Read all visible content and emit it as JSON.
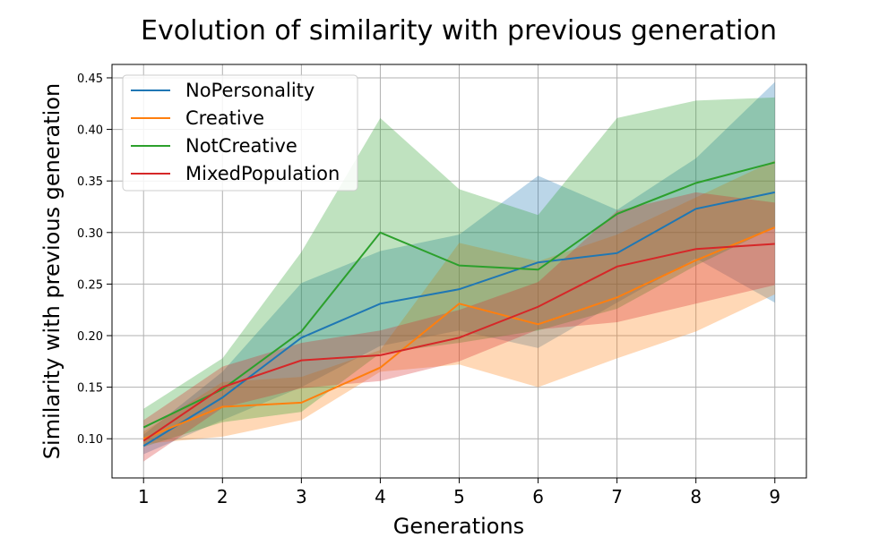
{
  "chart_data": {
    "type": "line",
    "title": "Evolution of similarity with previous generation",
    "xlabel": "Generations",
    "ylabel": "Similarity with previous generation",
    "x": [
      1,
      2,
      3,
      4,
      5,
      6,
      7,
      8,
      9
    ],
    "xlim": [
      0.6,
      9.4
    ],
    "ylim": [
      0.062,
      0.463
    ],
    "xticks": [
      1,
      2,
      3,
      4,
      5,
      6,
      7,
      8,
      9
    ],
    "yticks": [
      0.1,
      0.15,
      0.2,
      0.25,
      0.3,
      0.35,
      0.4,
      0.45
    ],
    "grid": true,
    "legend_position": "upper-left",
    "series": [
      {
        "name": "NoPersonality",
        "color": "#1f77b4",
        "values": [
          0.093,
          0.14,
          0.198,
          0.231,
          0.245,
          0.271,
          0.28,
          0.323,
          0.339
        ],
        "lower": [
          0.085,
          0.118,
          0.15,
          0.19,
          0.205,
          0.188,
          0.232,
          0.275,
          0.232
        ],
        "upper": [
          0.104,
          0.165,
          0.251,
          0.282,
          0.298,
          0.355,
          0.322,
          0.372,
          0.446
        ]
      },
      {
        "name": "Creative",
        "color": "#ff7f0e",
        "values": [
          0.1,
          0.131,
          0.135,
          0.169,
          0.231,
          0.211,
          0.237,
          0.273,
          0.305
        ],
        "lower": [
          0.095,
          0.102,
          0.118,
          0.165,
          0.172,
          0.15,
          0.178,
          0.204,
          0.24
        ],
        "upper": [
          0.107,
          0.155,
          0.16,
          0.186,
          0.29,
          0.272,
          0.298,
          0.334,
          0.37
        ]
      },
      {
        "name": "NotCreative",
        "color": "#2ca02c",
        "values": [
          0.111,
          0.148,
          0.204,
          0.3,
          0.268,
          0.264,
          0.318,
          0.348,
          0.368
        ],
        "lower": [
          0.092,
          0.116,
          0.126,
          0.183,
          0.193,
          0.205,
          0.226,
          0.268,
          0.305
        ],
        "upper": [
          0.129,
          0.178,
          0.281,
          0.411,
          0.342,
          0.317,
          0.411,
          0.428,
          0.431
        ]
      },
      {
        "name": "MixedPopulation",
        "color": "#d62728",
        "values": [
          0.098,
          0.15,
          0.176,
          0.181,
          0.198,
          0.228,
          0.267,
          0.284,
          0.289
        ],
        "lower": [
          0.078,
          0.13,
          0.149,
          0.156,
          0.175,
          0.206,
          0.213,
          0.231,
          0.249
        ],
        "upper": [
          0.118,
          0.17,
          0.193,
          0.205,
          0.225,
          0.252,
          0.321,
          0.339,
          0.329
        ]
      }
    ]
  }
}
